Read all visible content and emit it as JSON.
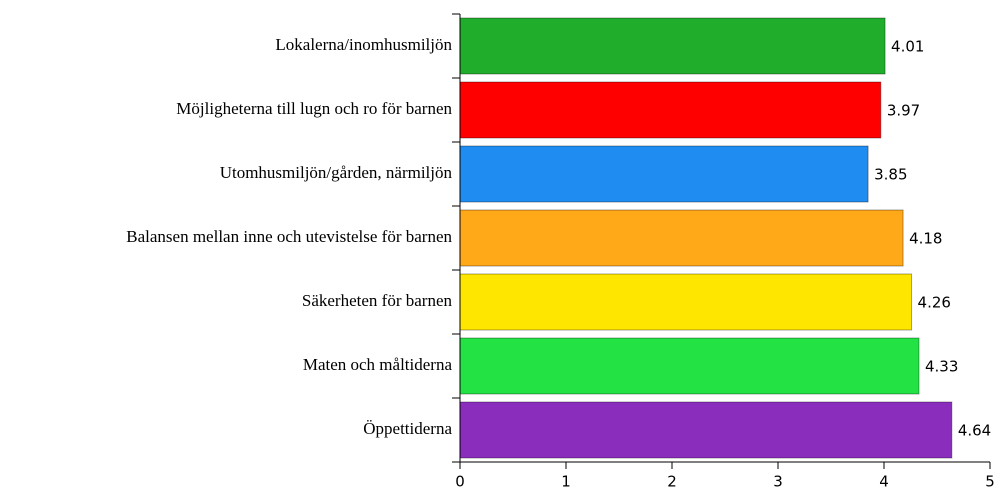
{
  "chart_data": {
    "type": "barh",
    "categories": [
      "Lokalerna/inomhusmiljön",
      "Möjligheterna till lugn och ro för barnen",
      "Utomhusmiljön/gården, närmiljön",
      "Balansen mellan inne och utevistelse för barnen",
      "Säkerheten för barnen",
      "Maten och måltiderna",
      "Öppettiderna"
    ],
    "values": [
      4.01,
      3.97,
      3.85,
      4.18,
      4.26,
      4.33,
      4.64
    ],
    "colors": [
      "#1fad2b",
      "#ff0000",
      "#1e8cf0",
      "#ffa818",
      "#ffe600",
      "#22e244",
      "#8a2dbd"
    ],
    "xlim": [
      0,
      5
    ],
    "xticks": [
      0,
      1,
      2,
      3,
      4,
      5
    ]
  }
}
